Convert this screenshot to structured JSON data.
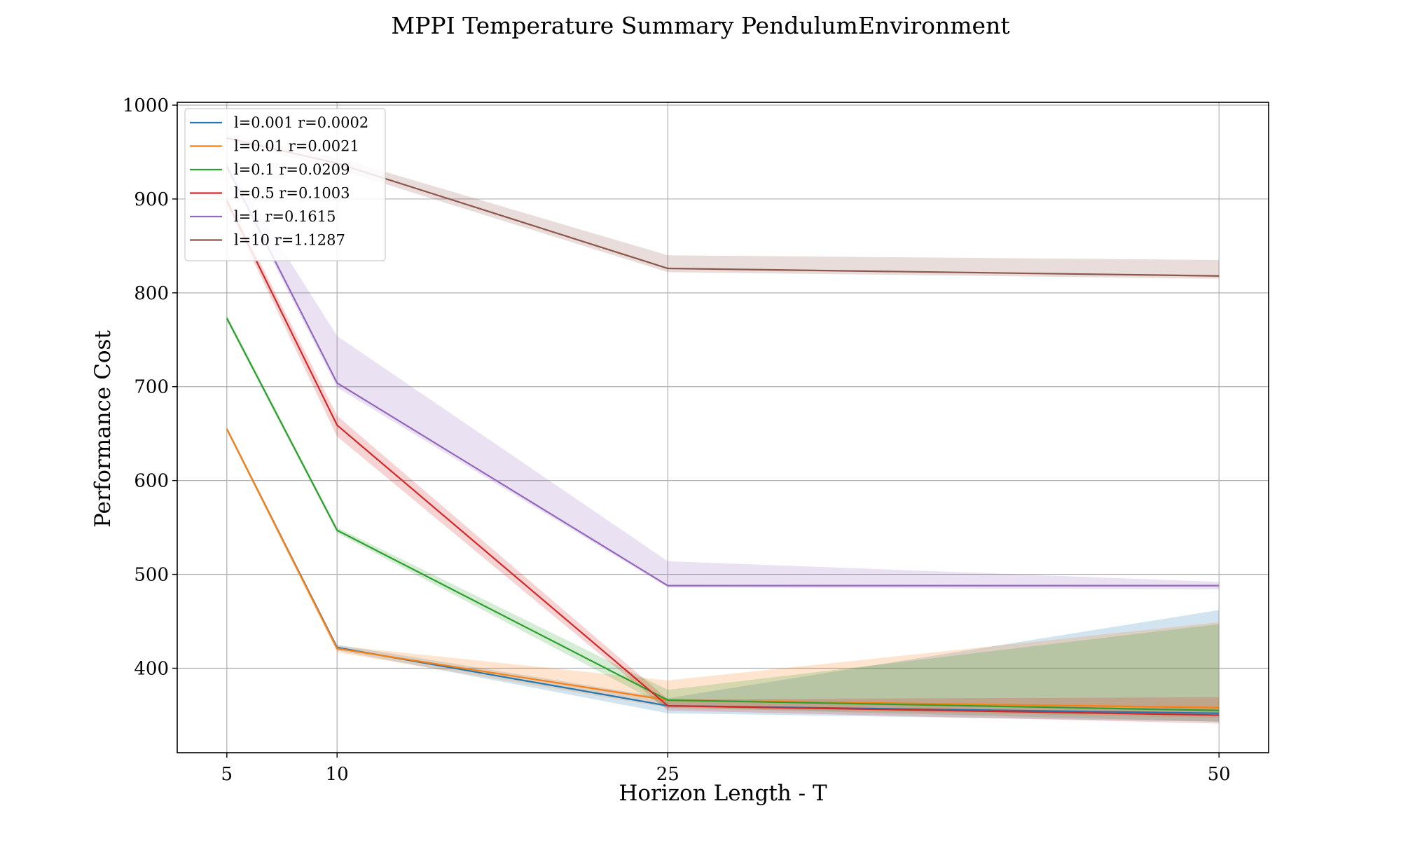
{
  "chart_data": {
    "type": "line",
    "title": "MPPI Temperature Summary PendulumEnvironment",
    "xlabel": "Horizon Length - T",
    "ylabel": "Performance Cost",
    "x": [
      5,
      10,
      25,
      50
    ],
    "xticks": [
      5,
      10,
      25,
      50
    ],
    "yticks": [
      400,
      500,
      600,
      700,
      800,
      900,
      1000
    ],
    "xlim": [
      2.75,
      52.25
    ],
    "ylim": [
      310,
      1003
    ],
    "grid": true,
    "legend_position": "top-left",
    "series": [
      {
        "name": "l=0.001 r=0.0002",
        "color": "#1f77b4",
        "values": [
          655,
          422,
          360,
          352
        ],
        "band_low": [
          653,
          419,
          352,
          343
        ],
        "band_high": [
          657,
          425,
          368,
          462
        ]
      },
      {
        "name": "l=0.01 r=0.0021",
        "color": "#ff7f0e",
        "values": [
          655,
          421,
          366,
          358
        ],
        "band_low": [
          653,
          417,
          358,
          347
        ],
        "band_high": [
          657,
          424,
          387,
          449
        ]
      },
      {
        "name": "l=0.1 r=0.0209",
        "color": "#2ca02c",
        "values": [
          773,
          547,
          366,
          355
        ],
        "band_low": [
          770,
          544,
          358,
          343
        ],
        "band_high": [
          776,
          550,
          377,
          447
        ]
      },
      {
        "name": "l=0.5 r=0.1003",
        "color": "#d62728",
        "values": [
          898,
          659,
          360,
          350
        ],
        "band_low": [
          893,
          647,
          355,
          341
        ],
        "band_high": [
          903,
          669,
          367,
          369
        ]
      },
      {
        "name": "l=1 r=0.1615",
        "color": "#9467bd",
        "values": [
          935,
          704,
          488,
          488
        ],
        "band_low": [
          930,
          699,
          486,
          484
        ],
        "band_high": [
          940,
          754,
          514,
          492
        ]
      },
      {
        "name": "l=10 r=1.1287",
        "color": "#8c564b",
        "values": [
          965,
          938,
          826,
          818
        ],
        "band_low": [
          962,
          932,
          822,
          815
        ],
        "band_high": [
          968,
          944,
          840,
          835
        ]
      }
    ]
  }
}
